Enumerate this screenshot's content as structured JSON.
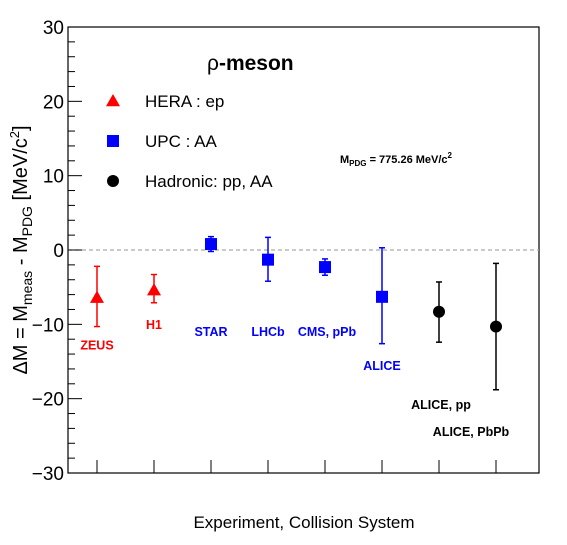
{
  "chart_data": {
    "type": "scatter",
    "title_prefix": "ρ",
    "title_suffix": "-meson",
    "ylabel_parts": {
      "lhs": "ΔM = M",
      "meas": "meas",
      "mid": " - M",
      "pdg": "PDG",
      "unit_open": " [MeV/c",
      "unit_exp": "2",
      "unit_close": "]"
    },
    "xlabel": "Experiment, Collision System",
    "ylim": [
      -30,
      30
    ],
    "yticks": [
      -30,
      -20,
      -10,
      0,
      10,
      20,
      30
    ],
    "ytick_labels": [
      "−30",
      "−20",
      "−10",
      "0",
      "10",
      "20",
      "30"
    ],
    "reference_line": 0,
    "annotation": {
      "prefix": "M",
      "sub": "PDG",
      "value": " = 775.26 MeV/c",
      "exp": "2"
    },
    "legend": [
      {
        "label": "HERA : ep",
        "marker": "triangle",
        "color": "#ff0000"
      },
      {
        "label": "UPC : AA",
        "marker": "square",
        "color": "#0000ff"
      },
      {
        "label": "Hadronic: pp, AA",
        "marker": "circle",
        "color": "#000000"
      }
    ],
    "points": [
      {
        "label": "ZEUS",
        "group": "HERA : ep",
        "y": -6.4,
        "err_low": 3.9,
        "err_high": 4.2
      },
      {
        "label": "H1",
        "group": "HERA : ep",
        "y": -5.4,
        "err_low": 1.7,
        "err_high": 2.1
      },
      {
        "label": "STAR",
        "group": "UPC : AA",
        "y": 0.8,
        "err_low": 1.0,
        "err_high": 1.0
      },
      {
        "label": "LHCb",
        "group": "UPC : AA",
        "y": -1.3,
        "err_low": 2.9,
        "err_high": 3.0
      },
      {
        "label": "CMS, pPb",
        "group": "UPC : AA",
        "y": -2.3,
        "err_low": 1.1,
        "err_high": 1.1
      },
      {
        "label": "ALICE",
        "group": "UPC : AA",
        "y": -6.3,
        "err_low": 6.3,
        "err_high": 6.6
      },
      {
        "label": "ALICE, pp",
        "group": "Hadronic: pp, AA",
        "y": -8.3,
        "err_low": 4.1,
        "err_high": 4.0
      },
      {
        "label": "ALICE, PbPb",
        "group": "Hadronic: pp, AA",
        "y": -10.3,
        "err_low": 8.5,
        "err_high": 8.5
      }
    ],
    "colors": {
      "HERA : ep": "#ff0000",
      "UPC : AA": "#0000ff",
      "Hadronic: pp, AA": "#000000"
    },
    "grid": false
  }
}
